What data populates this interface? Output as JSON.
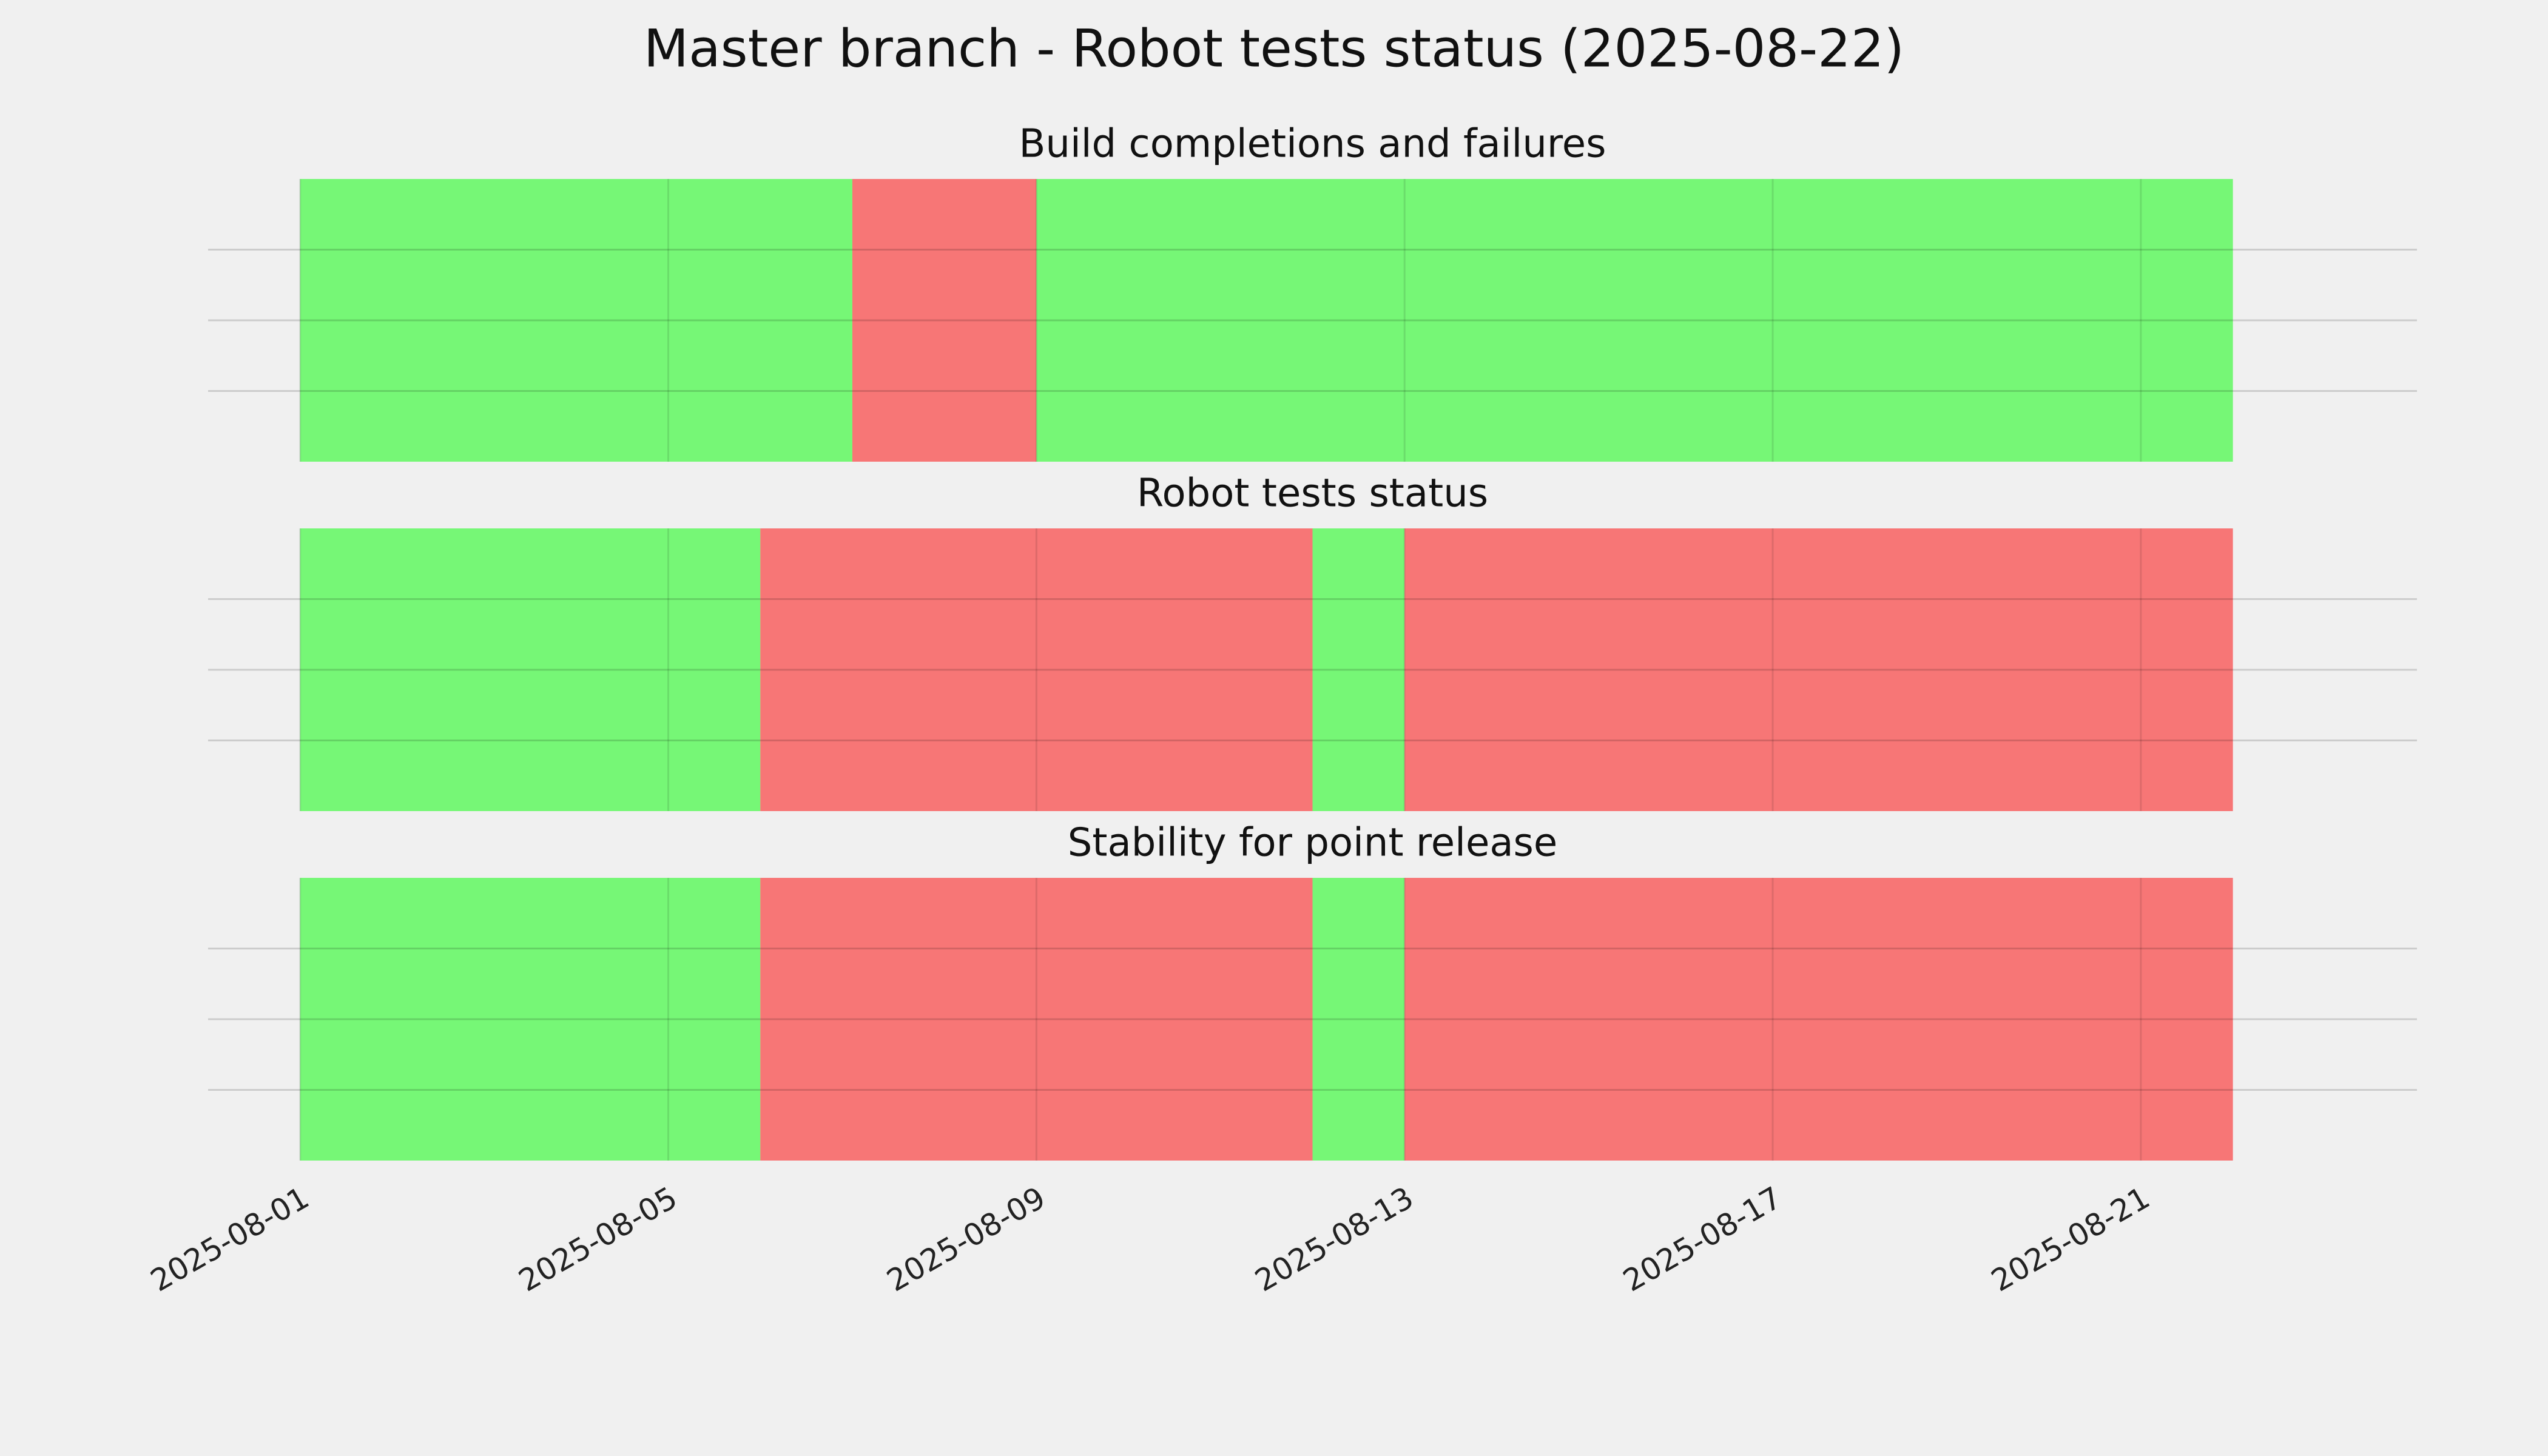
{
  "title": "Master branch - Robot tests status (2025-08-22)",
  "chart_data": [
    {
      "type": "timeline",
      "title": "Build completions and failures",
      "spans": [
        {
          "start": "2025-08-01",
          "end": "2025-08-07",
          "color": "#76f776"
        },
        {
          "start": "2025-08-07",
          "end": "2025-08-09",
          "color": "#f77676"
        },
        {
          "start": "2025-08-09",
          "end": "2025-08-22",
          "color": "#76f776"
        }
      ],
      "xlim": [
        "2025-07-31",
        "2025-08-24"
      ],
      "xticks": [
        "2025-08-01",
        "2025-08-05",
        "2025-08-09",
        "2025-08-13",
        "2025-08-17",
        "2025-08-21"
      ],
      "ylim": [
        0,
        4
      ],
      "yticks": [
        1,
        2,
        3
      ],
      "grid": true
    },
    {
      "type": "timeline",
      "title": "Robot tests status",
      "spans": [
        {
          "start": "2025-08-01",
          "end": "2025-08-06",
          "color": "#76f776"
        },
        {
          "start": "2025-08-06",
          "end": "2025-08-12",
          "color": "#f77676"
        },
        {
          "start": "2025-08-12",
          "end": "2025-08-13",
          "color": "#76f776"
        },
        {
          "start": "2025-08-13",
          "end": "2025-08-22",
          "color": "#f77676"
        }
      ],
      "xlim": [
        "2025-07-31",
        "2025-08-24"
      ],
      "xticks": [
        "2025-08-01",
        "2025-08-05",
        "2025-08-09",
        "2025-08-13",
        "2025-08-17",
        "2025-08-21"
      ],
      "ylim": [
        0,
        4
      ],
      "yticks": [
        1,
        2,
        3
      ],
      "grid": true
    },
    {
      "type": "timeline",
      "title": "Stability for point release",
      "spans": [
        {
          "start": "2025-08-01",
          "end": "2025-08-06",
          "color": "#76f776"
        },
        {
          "start": "2025-08-06",
          "end": "2025-08-12",
          "color": "#f77676"
        },
        {
          "start": "2025-08-12",
          "end": "2025-08-13",
          "color": "#76f776"
        },
        {
          "start": "2025-08-13",
          "end": "2025-08-22",
          "color": "#f77676"
        }
      ],
      "xlim": [
        "2025-07-31",
        "2025-08-24"
      ],
      "xticks": [
        "2025-08-01",
        "2025-08-05",
        "2025-08-09",
        "2025-08-13",
        "2025-08-17",
        "2025-08-21"
      ],
      "ylim": [
        0,
        4
      ],
      "yticks": [
        1,
        2,
        3
      ],
      "grid": true
    }
  ]
}
